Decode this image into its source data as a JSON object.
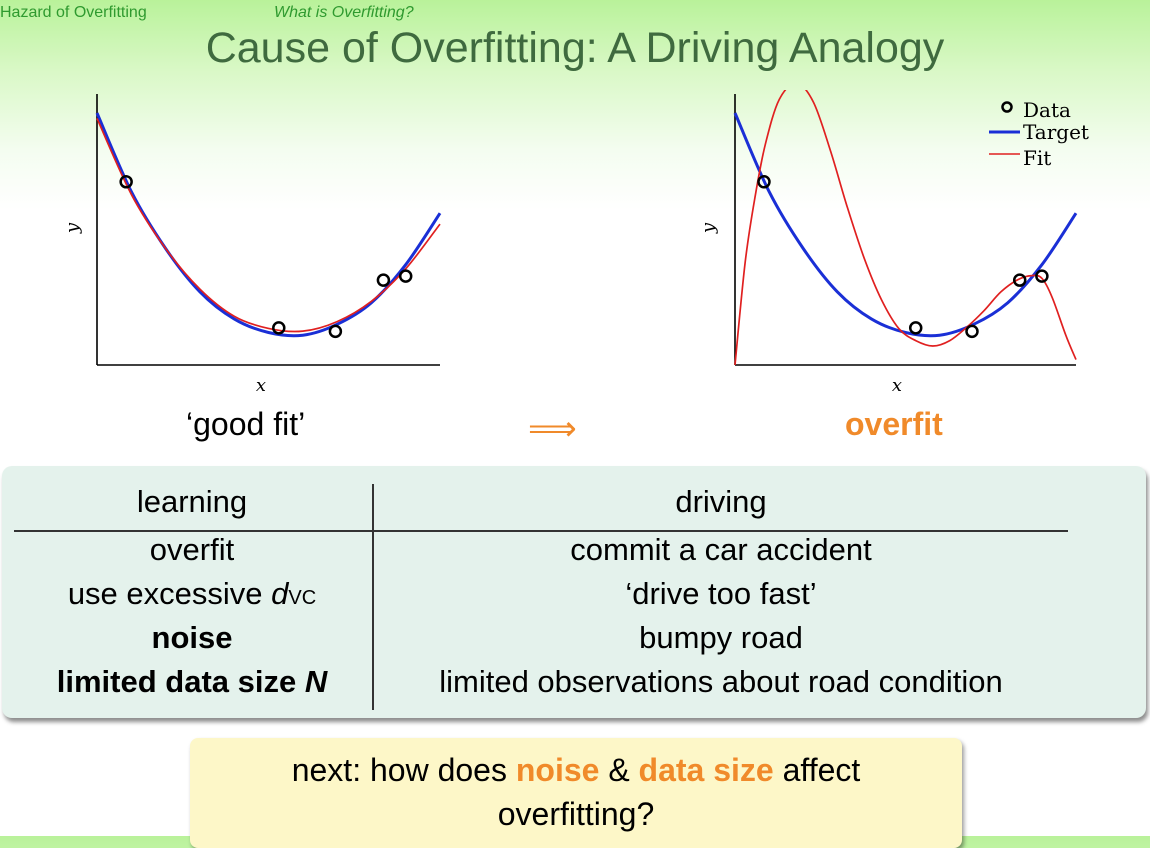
{
  "header": {
    "section": "Hazard of Overfitting",
    "subsection": "What is Overfitting?",
    "title": "Cause of Overfitting: A Driving Analogy"
  },
  "colors": {
    "target": "#1a2fd6",
    "fit": "#e02020",
    "accent": "#f08a2a"
  },
  "chart_data": [
    {
      "type": "line",
      "caption": "‘good fit’",
      "xlabel": "x",
      "ylabel": "y",
      "xlim": [
        0,
        1
      ],
      "ylim": [
        0,
        1
      ],
      "data_points": {
        "x": [
          0.085,
          0.53,
          0.695,
          0.835,
          0.9
        ],
        "y": [
          0.676,
          0.137,
          0.124,
          0.313,
          0.328
        ]
      },
      "series": [
        {
          "name": "Target",
          "x": [
            0,
            0.1,
            0.2,
            0.3,
            0.4,
            0.5,
            0.6,
            0.7,
            0.8,
            0.9,
            1.0
          ],
          "y": [
            0.93,
            0.64,
            0.43,
            0.27,
            0.17,
            0.12,
            0.11,
            0.15,
            0.23,
            0.37,
            0.56
          ]
        },
        {
          "name": "Fit",
          "x": [
            0,
            0.1,
            0.2,
            0.3,
            0.4,
            0.5,
            0.6,
            0.7,
            0.8,
            0.9,
            1.0
          ],
          "y": [
            0.91,
            0.63,
            0.43,
            0.28,
            0.18,
            0.135,
            0.125,
            0.16,
            0.235,
            0.355,
            0.52
          ]
        }
      ]
    },
    {
      "type": "line",
      "caption": "overfit",
      "xlabel": "x",
      "ylabel": "y",
      "xlim": [
        0,
        1
      ],
      "ylim": [
        0,
        1
      ],
      "legend": {
        "position": "top-right",
        "data": "Data",
        "target": "Target",
        "fit": "Fit"
      },
      "data_points": {
        "x": [
          0.085,
          0.53,
          0.695,
          0.835,
          0.9
        ],
        "y": [
          0.676,
          0.137,
          0.124,
          0.313,
          0.328
        ]
      },
      "series": [
        {
          "name": "Target",
          "x": [
            0,
            0.1,
            0.2,
            0.3,
            0.4,
            0.5,
            0.6,
            0.7,
            0.8,
            0.9,
            1.0
          ],
          "y": [
            0.93,
            0.64,
            0.43,
            0.27,
            0.17,
            0.12,
            0.11,
            0.15,
            0.23,
            0.37,
            0.56
          ]
        },
        {
          "name": "Fit",
          "x": [
            0,
            0.03,
            0.06,
            0.09,
            0.13,
            0.18,
            0.23,
            0.28,
            0.33,
            0.38,
            0.43,
            0.48,
            0.53,
            0.58,
            0.63,
            0.68,
            0.73,
            0.78,
            0.83,
            0.87,
            0.9,
            0.93,
            0.97,
            1.0
          ],
          "y": [
            0.0,
            0.38,
            0.63,
            0.82,
            0.98,
            1.04,
            0.97,
            0.79,
            0.58,
            0.39,
            0.24,
            0.135,
            0.09,
            0.07,
            0.09,
            0.14,
            0.2,
            0.27,
            0.315,
            0.33,
            0.32,
            0.25,
            0.11,
            0.02
          ]
        }
      ]
    }
  ],
  "arrow": "⟹",
  "table": {
    "headers": [
      "learning",
      "driving"
    ],
    "rows": [
      {
        "learning": "overfit",
        "driving": "commit a car accident",
        "highlight": false
      },
      {
        "learning_pre": "use excessive ",
        "learning_var": "d",
        "learning_sub": "VC",
        "driving": "‘drive too fast’"
      },
      {
        "learning": "noise",
        "driving": "bumpy road",
        "highlight": true
      },
      {
        "learning_pre": "limited data size ",
        "learning_var": "N",
        "driving": "limited observations about road condition",
        "highlight": true
      }
    ]
  },
  "next": {
    "prefix": "next: how does ",
    "noise": "noise",
    "amp": " & ",
    "data_size": "data size",
    "suffix": " affect",
    "line2": "overfitting?"
  }
}
